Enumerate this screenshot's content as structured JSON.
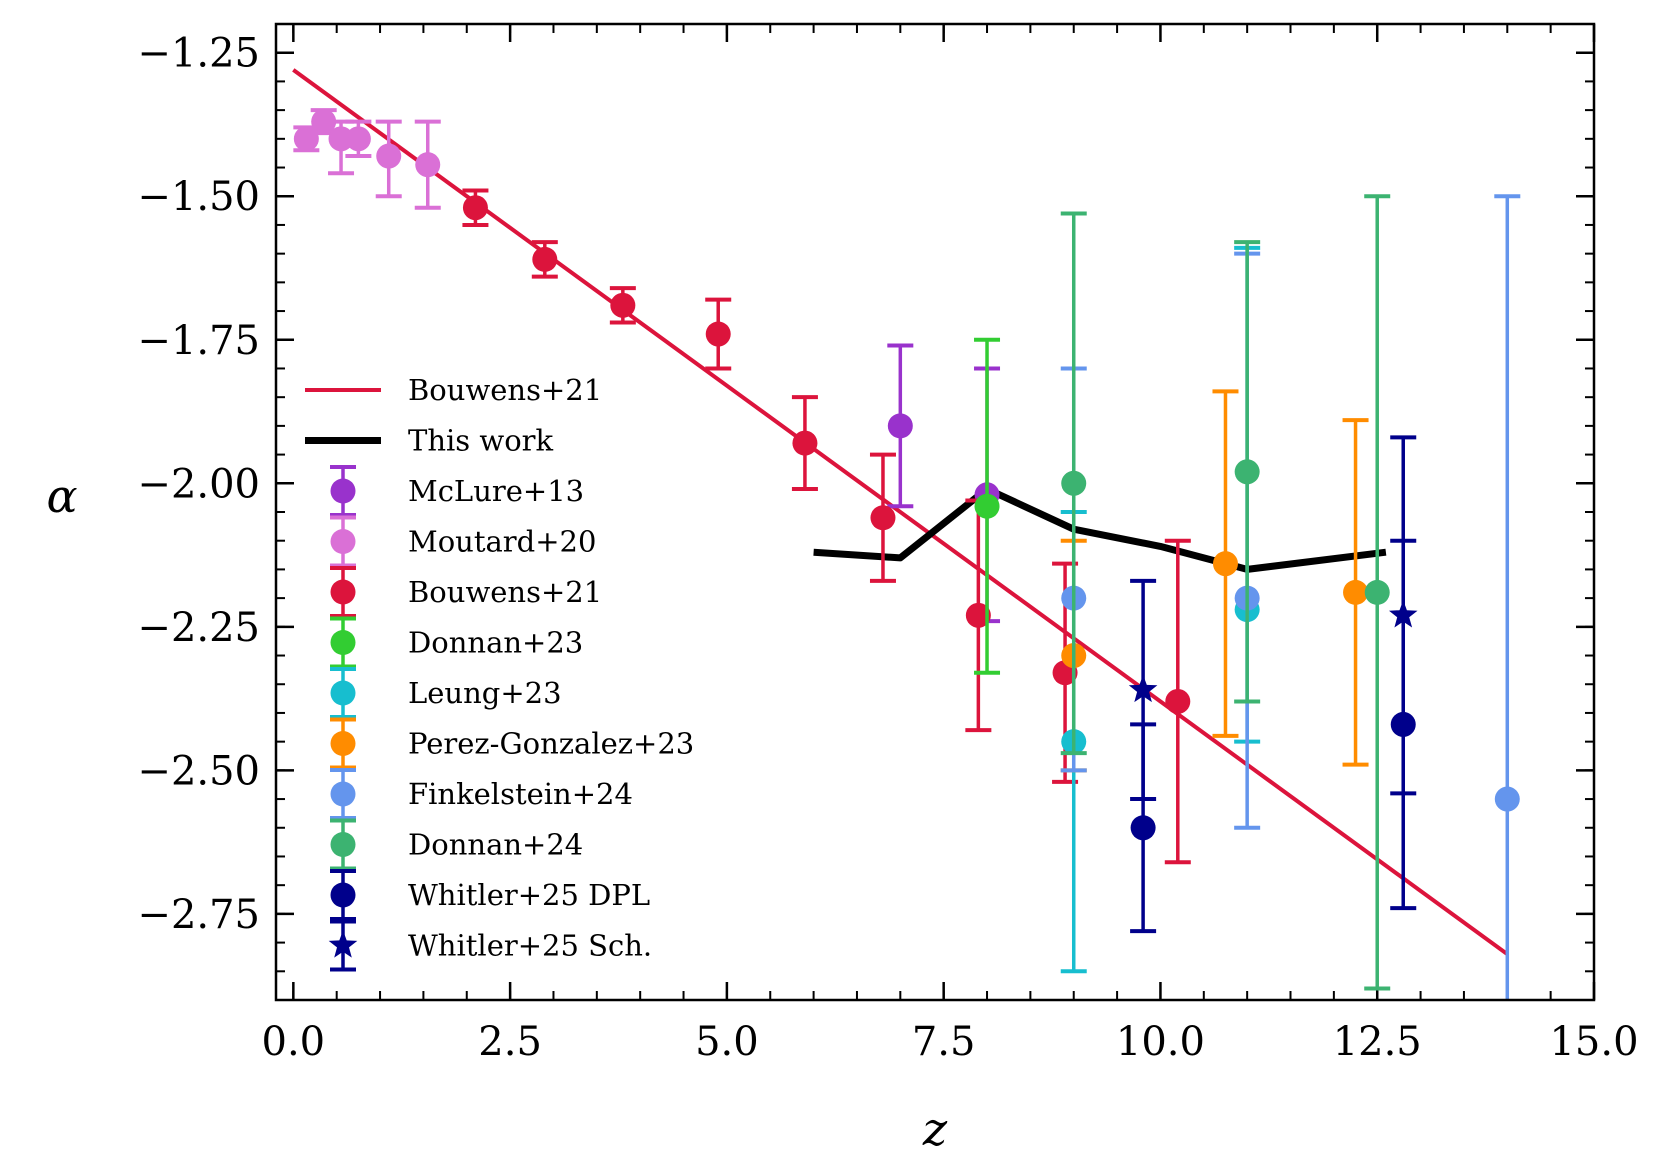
{
  "chart_data": {
    "type": "scatter",
    "title": "",
    "xlabel": "z",
    "ylabel": "α",
    "xlim": [
      -0.2,
      15.0
    ],
    "ylim": [
      -2.9,
      -1.2
    ],
    "x_ticks": [
      0.0,
      2.5,
      5.0,
      7.5,
      10.0,
      12.5,
      15.0
    ],
    "x_tick_labels": [
      "0.0",
      "2.5",
      "5.0",
      "7.5",
      "10.0",
      "12.5",
      "15.0"
    ],
    "y_ticks": [
      -1.25,
      -1.5,
      -1.75,
      -2.0,
      -2.25,
      -2.5,
      -2.75
    ],
    "y_tick_labels": [
      "−1.25",
      "−1.50",
      "−1.75",
      "−2.00",
      "−2.25",
      "−2.50",
      "−2.75"
    ],
    "legend_position": "center-left",
    "lines": [
      {
        "name": "Bouwens+21",
        "color": "#dc143c",
        "x": [
          0.0,
          14.0
        ],
        "y": [
          -1.28,
          -2.82
        ]
      },
      {
        "name": "This work",
        "color": "#000000",
        "x": [
          6.0,
          7.0,
          8.0,
          9.0,
          10.0,
          11.0,
          12.6
        ],
        "y": [
          -2.12,
          -2.13,
          -2.01,
          -2.08,
          -2.11,
          -2.15,
          -2.12
        ]
      }
    ],
    "series": [
      {
        "name": "McLure+13",
        "color": "#9932cc",
        "marker": "circle",
        "points": [
          {
            "x": 7.0,
            "y": -1.9,
            "ylo": -2.04,
            "yhi": -1.76
          },
          {
            "x": 8.0,
            "y": -2.02,
            "ylo": -2.24,
            "yhi": -1.8
          }
        ]
      },
      {
        "name": "Moutard+20",
        "color": "#da70d6",
        "marker": "circle",
        "points": [
          {
            "x": 0.15,
            "y": -1.4,
            "ylo": -1.42,
            "yhi": -1.38
          },
          {
            "x": 0.35,
            "y": -1.37,
            "ylo": -1.39,
            "yhi": -1.35
          },
          {
            "x": 0.55,
            "y": -1.4,
            "ylo": -1.46,
            "yhi": -1.37
          },
          {
            "x": 0.75,
            "y": -1.4,
            "ylo": -1.43,
            "yhi": -1.37
          },
          {
            "x": 1.1,
            "y": -1.43,
            "ylo": -1.5,
            "yhi": -1.37
          },
          {
            "x": 1.55,
            "y": -1.445,
            "ylo": -1.52,
            "yhi": -1.37
          }
        ]
      },
      {
        "name": "Bouwens+21",
        "color": "#dc143c",
        "marker": "circle",
        "points": [
          {
            "x": 2.1,
            "y": -1.52,
            "ylo": -1.55,
            "yhi": -1.49
          },
          {
            "x": 2.9,
            "y": -1.61,
            "ylo": -1.64,
            "yhi": -1.58
          },
          {
            "x": 3.8,
            "y": -1.69,
            "ylo": -1.72,
            "yhi": -1.66
          },
          {
            "x": 4.9,
            "y": -1.74,
            "ylo": -1.8,
            "yhi": -1.68
          },
          {
            "x": 5.9,
            "y": -1.93,
            "ylo": -2.01,
            "yhi": -1.85
          },
          {
            "x": 6.8,
            "y": -2.06,
            "ylo": -2.17,
            "yhi": -1.95
          },
          {
            "x": 7.9,
            "y": -2.23,
            "ylo": -2.43,
            "yhi": -2.03
          },
          {
            "x": 8.9,
            "y": -2.33,
            "ylo": -2.52,
            "yhi": -2.14
          },
          {
            "x": 10.2,
            "y": -2.38,
            "ylo": -2.66,
            "yhi": -2.1
          }
        ]
      },
      {
        "name": "Donnan+23",
        "color": "#32cd32",
        "marker": "circle",
        "points": [
          {
            "x": 8.0,
            "y": -2.04,
            "ylo": -2.33,
            "yhi": -1.75
          }
        ]
      },
      {
        "name": "Leung+23",
        "color": "#17becf",
        "marker": "circle",
        "points": [
          {
            "x": 9.0,
            "y": -2.45,
            "ylo": -2.85,
            "yhi": -2.05
          },
          {
            "x": 11.0,
            "y": -2.22,
            "ylo": -2.45,
            "yhi": -1.59
          }
        ]
      },
      {
        "name": "Perez-Gonzalez+23",
        "color": "#ff8c00",
        "marker": "circle",
        "points": [
          {
            "x": 9.0,
            "y": -2.3,
            "ylo": -2.5,
            "yhi": -2.1
          },
          {
            "x": 10.75,
            "y": -2.14,
            "ylo": -2.44,
            "yhi": -1.84
          },
          {
            "x": 12.25,
            "y": -2.19,
            "ylo": -2.49,
            "yhi": -1.89
          }
        ]
      },
      {
        "name": "Finkelstein+24",
        "color": "#6495ed",
        "marker": "circle",
        "points": [
          {
            "x": 9.0,
            "y": -2.2,
            "ylo": -2.5,
            "yhi": -1.8
          },
          {
            "x": 11.0,
            "y": -2.2,
            "ylo": -2.6,
            "yhi": -1.6
          },
          {
            "x": 14.0,
            "y": -2.55,
            "ylo": -2.95,
            "yhi": -1.5
          }
        ]
      },
      {
        "name": "Donnan+24",
        "color": "#3cb371",
        "marker": "circle",
        "points": [
          {
            "x": 9.0,
            "y": -2.0,
            "ylo": -2.47,
            "yhi": -1.53
          },
          {
            "x": 11.0,
            "y": -1.98,
            "ylo": -2.38,
            "yhi": -1.58
          },
          {
            "x": 12.5,
            "y": -2.19,
            "ylo": -2.88,
            "yhi": -1.5
          }
        ]
      },
      {
        "name": "Whitler+25 DPL",
        "color": "#00008b",
        "marker": "circle",
        "points": [
          {
            "x": 9.8,
            "y": -2.6,
            "ylo": -2.78,
            "yhi": -2.42
          },
          {
            "x": 12.8,
            "y": -2.42,
            "ylo": -2.74,
            "yhi": -2.1
          }
        ]
      },
      {
        "name": "Whitler+25 Sch.",
        "color": "#00008b",
        "marker": "star",
        "points": [
          {
            "x": 9.8,
            "y": -2.36,
            "ylo": -2.55,
            "yhi": -2.17
          },
          {
            "x": 12.8,
            "y": -2.23,
            "ylo": -2.54,
            "yhi": -1.92
          }
        ]
      }
    ]
  }
}
